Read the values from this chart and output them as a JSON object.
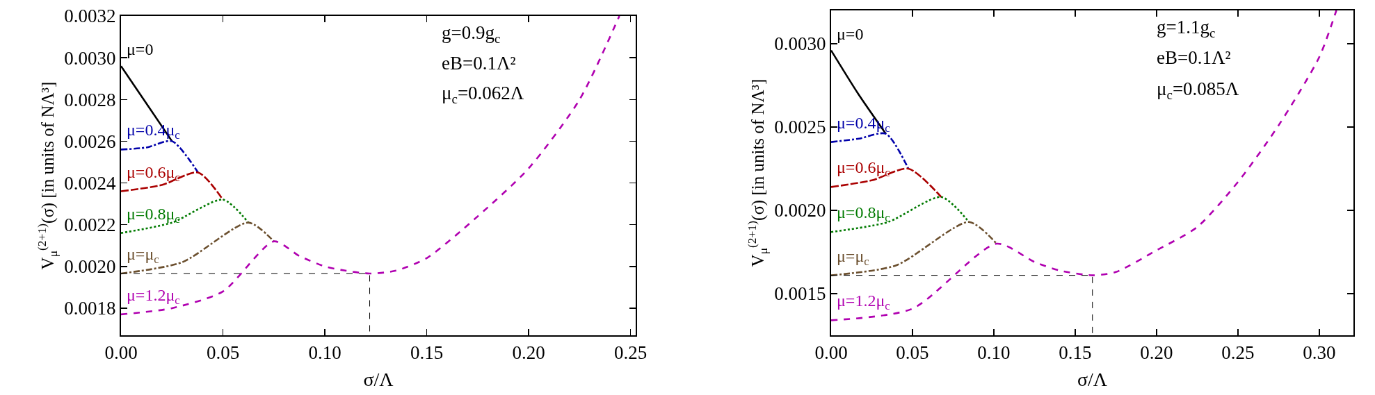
{
  "chart_data": [
    {
      "type": "line",
      "xlabel": "σ/Λ",
      "ylabel": "V$_{μ}$$^{(2+1)}$(σ) [in units of NΛ³]",
      "annotations": [
        "g=0.9g$_{c}$",
        "eB=0.1Λ²",
        "μ$_{c}$=0.062Λ"
      ],
      "xlim": [
        0,
        0.2525
      ],
      "ylim": [
        0.00167,
        0.0032
      ],
      "xticks": [
        {
          "value": 0,
          "label": "0.00"
        },
        {
          "value": 0.05,
          "label": "0.05"
        },
        {
          "value": 0.1,
          "label": "0.10"
        },
        {
          "value": 0.15,
          "label": "0.15"
        },
        {
          "value": 0.2,
          "label": "0.20"
        },
        {
          "value": 0.25,
          "label": "0.25"
        }
      ],
      "yticks": [
        {
          "value": 0.0018,
          "label": "0.0018"
        },
        {
          "value": 0.002,
          "label": "0.0020"
        },
        {
          "value": 0.0022,
          "label": "0.0022"
        },
        {
          "value": 0.0024,
          "label": "0.0024"
        },
        {
          "value": 0.0026,
          "label": "0.0026"
        },
        {
          "value": 0.0028,
          "label": "0.0028"
        },
        {
          "value": 0.003,
          "label": "0.0030"
        },
        {
          "value": 0.0032,
          "label": "0.0032"
        }
      ],
      "grid": false,
      "legend": false,
      "series": [
        {
          "name": "μ=0",
          "color": "#000000",
          "line_style": "solid",
          "x": [
            0,
            0.0125,
            0.025
          ],
          "values": [
            0.00296,
            0.00278,
            0.0026
          ]
        },
        {
          "name": "μ=0.4μ$_{c}$",
          "color": "#0000aa",
          "line_style": "dashdot",
          "x": [
            0,
            0.0125,
            0.025,
            0.0378
          ],
          "values": [
            0.00256,
            0.00257,
            0.0026,
            0.00245
          ]
        },
        {
          "name": "μ=0.6μ$_{c}$",
          "color": "#aa0000",
          "line_style": "longdash",
          "x": [
            0,
            0.02,
            0.0378,
            0.05
          ],
          "values": [
            0.00236,
            0.00239,
            0.00245,
            0.00232
          ]
        },
        {
          "name": "μ=0.8μ$_{c}$",
          "color": "#007a00",
          "line_style": "dotted",
          "x": [
            0,
            0.025,
            0.05,
            0.0625
          ],
          "values": [
            0.00216,
            0.00221,
            0.00232,
            0.00221
          ]
        },
        {
          "name": "μ=μ$_{c}$",
          "color": "#6b4f2e",
          "line_style": "dashdot",
          "x": [
            0,
            0.03,
            0.0625,
            0.075
          ],
          "values": [
            0.001966,
            0.00202,
            0.00221,
            0.00212
          ]
        },
        {
          "name": "μ=1.2μ$_{c}$",
          "color": "#b000b0",
          "line_style": "dashed",
          "x": [
            0,
            0.025,
            0.05,
            0.075,
            0.0875,
            0.1,
            0.11,
            0.122,
            0.135,
            0.15,
            0.175,
            0.2,
            0.225,
            0.2445
          ],
          "values": [
            0.00177,
            0.0018,
            0.00188,
            0.00212,
            0.00205,
            0.002,
            0.00198,
            0.001966,
            0.00198,
            0.00204,
            0.00224,
            0.00247,
            0.0028,
            0.0032
          ]
        },
        {
          "color": "#000000",
          "line_style": "dashed",
          "x": [
            0,
            0.122,
            0.122
          ],
          "values": [
            0.001966,
            0.001966,
            0.00167
          ]
        }
      ]
    },
    {
      "type": "line",
      "xlabel": "σ/Λ",
      "ylabel": "V$_{μ}$$^{(2+1)}$(σ) [in units of NΛ³]",
      "annotations": [
        "g=1.1g$_{c}$",
        "eB=0.1Λ²",
        "μ$_{c}$=0.085Λ"
      ],
      "xlim": [
        0,
        0.321
      ],
      "ylim": [
        0.00125,
        0.0032
      ],
      "xticks": [
        {
          "value": 0,
          "label": "0.00"
        },
        {
          "value": 0.05,
          "label": "0.05"
        },
        {
          "value": 0.1,
          "label": "0.10"
        },
        {
          "value": 0.15,
          "label": "0.15"
        },
        {
          "value": 0.2,
          "label": "0.20"
        },
        {
          "value": 0.25,
          "label": "0.25"
        },
        {
          "value": 0.3,
          "label": "0.30"
        }
      ],
      "yticks": [
        {
          "value": 0.0015,
          "label": "0.0015"
        },
        {
          "value": 0.002,
          "label": "0.0020"
        },
        {
          "value": 0.0025,
          "label": "0.0025"
        },
        {
          "value": 0.003,
          "label": "0.0030"
        }
      ],
      "grid": false,
      "legend": false,
      "series": [
        {
          "name": "μ=0",
          "color": "#000000",
          "line_style": "solid",
          "x": [
            0,
            0.0166,
            0.0336
          ],
          "values": [
            0.00296,
            0.0027,
            0.00246
          ]
        },
        {
          "name": "μ=0.4μ$_{c}$",
          "color": "#0000aa",
          "line_style": "dashdot",
          "x": [
            0,
            0.017,
            0.0336,
            0.0475
          ],
          "values": [
            0.00241,
            0.00243,
            0.00246,
            0.00225
          ]
        },
        {
          "name": "μ=0.6μ$_{c}$",
          "color": "#aa0000",
          "line_style": "longdash",
          "x": [
            0,
            0.025,
            0.0475,
            0.0677
          ],
          "values": [
            0.00214,
            0.00218,
            0.00225,
            0.00208
          ]
        },
        {
          "name": "μ=0.8μ$_{c}$",
          "color": "#007a00",
          "line_style": "dotted",
          "x": [
            0,
            0.035,
            0.0677,
            0.0847
          ],
          "values": [
            0.00187,
            0.00193,
            0.00208,
            0.00193
          ]
        },
        {
          "name": "μ=μ$_{c}$",
          "color": "#6b4f2e",
          "line_style": "dashdot",
          "x": [
            0,
            0.04,
            0.0847,
            0.1017
          ],
          "values": [
            0.00161,
            0.00167,
            0.00193,
            0.0018
          ]
        },
        {
          "name": "μ=1.2μ$_{c}$",
          "color": "#b000b0",
          "line_style": "dashed",
          "x": [
            0,
            0.05,
            0.1017,
            0.125,
            0.14,
            0.1606,
            0.175,
            0.2,
            0.225,
            0.25,
            0.275,
            0.3,
            0.3105
          ],
          "values": [
            0.00134,
            0.00141,
            0.0018,
            0.00169,
            0.00164,
            0.00161,
            0.00163,
            0.00176,
            0.0019,
            0.00217,
            0.00251,
            0.00292,
            0.0032
          ]
        },
        {
          "color": "#000000",
          "line_style": "dashed",
          "x": [
            0,
            0.1606,
            0.1606
          ],
          "values": [
            0.00161,
            0.00161,
            0.00125
          ]
        }
      ]
    }
  ]
}
